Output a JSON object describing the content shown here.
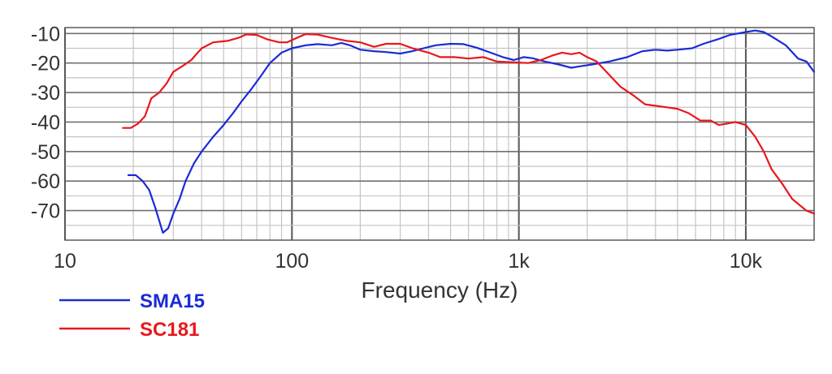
{
  "chart_data": {
    "type": "line",
    "title": "",
    "xlabel": "Frequency (Hz)",
    "ylabel": "",
    "x_scale": "log",
    "xlim": [
      10,
      20000
    ],
    "ylim": [
      -80,
      -8
    ],
    "grid": true,
    "legend_position": "bottom-left",
    "x_ticks": [
      {
        "value": 10,
        "label": "10"
      },
      {
        "value": 100,
        "label": "100"
      },
      {
        "value": 1000,
        "label": "1k"
      },
      {
        "value": 10000,
        "label": "10k"
      }
    ],
    "y_ticks": [
      {
        "value": -10,
        "label": "-10"
      },
      {
        "value": -20,
        "label": "-20"
      },
      {
        "value": -30,
        "label": "-30"
      },
      {
        "value": -40,
        "label": "-40"
      },
      {
        "value": -50,
        "label": "-50"
      },
      {
        "value": -60,
        "label": "-60"
      },
      {
        "value": -70,
        "label": "-70"
      }
    ],
    "series": [
      {
        "name": "SMA15",
        "color": "#1a2bd6",
        "points": [
          [
            19,
            -58
          ],
          [
            20.5,
            -58
          ],
          [
            22,
            -60
          ],
          [
            23.5,
            -63
          ],
          [
            25,
            -69
          ],
          [
            27,
            -77.5
          ],
          [
            28.5,
            -76
          ],
          [
            30,
            -71
          ],
          [
            32,
            -66
          ],
          [
            34,
            -60
          ],
          [
            37,
            -54
          ],
          [
            40,
            -50
          ],
          [
            45,
            -45
          ],
          [
            50,
            -41
          ],
          [
            55,
            -37
          ],
          [
            60,
            -33
          ],
          [
            66,
            -29
          ],
          [
            72,
            -25
          ],
          [
            80,
            -20
          ],
          [
            90,
            -16.5
          ],
          [
            100,
            -15
          ],
          [
            115,
            -14
          ],
          [
            130,
            -13.6
          ],
          [
            150,
            -14
          ],
          [
            165,
            -13.2
          ],
          [
            180,
            -14
          ],
          [
            200,
            -15.5
          ],
          [
            230,
            -16
          ],
          [
            260,
            -16.3
          ],
          [
            300,
            -16.8
          ],
          [
            340,
            -16
          ],
          [
            380,
            -15
          ],
          [
            430,
            -14
          ],
          [
            500,
            -13.5
          ],
          [
            570,
            -13.6
          ],
          [
            650,
            -14.8
          ],
          [
            750,
            -16.5
          ],
          [
            850,
            -18
          ],
          [
            950,
            -19
          ],
          [
            1050,
            -18
          ],
          [
            1150,
            -18.4
          ],
          [
            1300,
            -19.5
          ],
          [
            1500,
            -20.5
          ],
          [
            1700,
            -21.6
          ],
          [
            1900,
            -21
          ],
          [
            2100,
            -20.5
          ],
          [
            2500,
            -19.5
          ],
          [
            3000,
            -18
          ],
          [
            3500,
            -16
          ],
          [
            4000,
            -15.5
          ],
          [
            4500,
            -15.8
          ],
          [
            5000,
            -15.5
          ],
          [
            5800,
            -15
          ],
          [
            6500,
            -13.5
          ],
          [
            7500,
            -12
          ],
          [
            8500,
            -10.5
          ],
          [
            10000,
            -9.5
          ],
          [
            11000,
            -9
          ],
          [
            12000,
            -9.5
          ],
          [
            13000,
            -11
          ],
          [
            15000,
            -14
          ],
          [
            17000,
            -18.5
          ],
          [
            18500,
            -19.5
          ],
          [
            20000,
            -23
          ]
        ]
      },
      {
        "name": "SC181",
        "color": "#e8181c",
        "points": [
          [
            18,
            -42
          ],
          [
            19.5,
            -42
          ],
          [
            21,
            -40.5
          ],
          [
            22.5,
            -38
          ],
          [
            24,
            -32
          ],
          [
            26,
            -30
          ],
          [
            28,
            -27
          ],
          [
            30,
            -23
          ],
          [
            33,
            -21
          ],
          [
            36,
            -19
          ],
          [
            40,
            -15
          ],
          [
            45,
            -13
          ],
          [
            52,
            -12.5
          ],
          [
            58,
            -11.5
          ],
          [
            63,
            -10.3
          ],
          [
            70,
            -10.5
          ],
          [
            78,
            -12
          ],
          [
            88,
            -13
          ],
          [
            95,
            -13
          ],
          [
            105,
            -11.5
          ],
          [
            115,
            -10.2
          ],
          [
            130,
            -10.4
          ],
          [
            150,
            -11.5
          ],
          [
            175,
            -12.5
          ],
          [
            200,
            -13
          ],
          [
            230,
            -14.5
          ],
          [
            260,
            -13.5
          ],
          [
            300,
            -13.5
          ],
          [
            340,
            -15
          ],
          [
            400,
            -16.5
          ],
          [
            450,
            -18
          ],
          [
            520,
            -18
          ],
          [
            600,
            -18.5
          ],
          [
            700,
            -18
          ],
          [
            800,
            -19.5
          ],
          [
            950,
            -19.8
          ],
          [
            1100,
            -20
          ],
          [
            1250,
            -19
          ],
          [
            1400,
            -17.5
          ],
          [
            1550,
            -16.5
          ],
          [
            1700,
            -17
          ],
          [
            1850,
            -16.5
          ],
          [
            2000,
            -18
          ],
          [
            2200,
            -19.5
          ],
          [
            2500,
            -24
          ],
          [
            2800,
            -28
          ],
          [
            3200,
            -31
          ],
          [
            3600,
            -34
          ],
          [
            4000,
            -34.5
          ],
          [
            4500,
            -35
          ],
          [
            5000,
            -35.5
          ],
          [
            5600,
            -37
          ],
          [
            6300,
            -39.5
          ],
          [
            7000,
            -39.5
          ],
          [
            7600,
            -41
          ],
          [
            8300,
            -40.5
          ],
          [
            9000,
            -40
          ],
          [
            10000,
            -41
          ],
          [
            11000,
            -45
          ],
          [
            12000,
            -50
          ],
          [
            13000,
            -56
          ],
          [
            14500,
            -61
          ],
          [
            16000,
            -66
          ],
          [
            17500,
            -68.5
          ],
          [
            18500,
            -70
          ],
          [
            20000,
            -71
          ]
        ]
      }
    ]
  }
}
